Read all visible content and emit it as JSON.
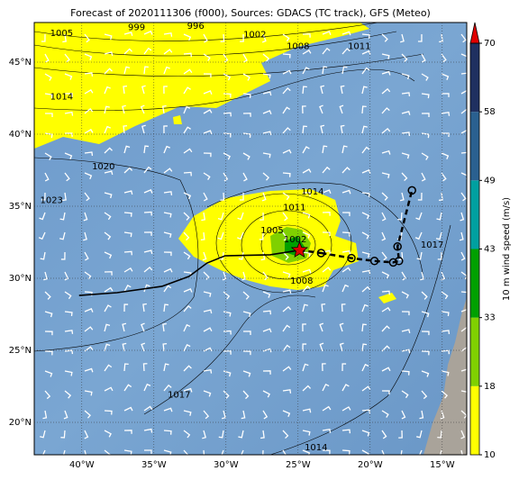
{
  "chart_data": {
    "type": "map",
    "title": "Forecast of 2020111306 (f000), Sources: GDACS (TC track), GFS (Meteo)",
    "xlim": [
      -43.3,
      -13.3
    ],
    "ylim": [
      17.75,
      47.75
    ],
    "xticks": [
      {
        "value": -40,
        "label": "40°W"
      },
      {
        "value": -35,
        "label": "35°W"
      },
      {
        "value": -30,
        "label": "30°W"
      },
      {
        "value": -25,
        "label": "25°W"
      },
      {
        "value": -20,
        "label": "20°W"
      },
      {
        "value": -15,
        "label": "15°W"
      }
    ],
    "yticks": [
      {
        "value": 20,
        "label": "20°N"
      },
      {
        "value": 25,
        "label": "25°N"
      },
      {
        "value": 30,
        "label": "30°N"
      },
      {
        "value": 35,
        "label": "35°N"
      },
      {
        "value": 40,
        "label": "40°N"
      },
      {
        "value": 45,
        "label": "45°N"
      }
    ],
    "grid": true,
    "contour_labels": [
      {
        "value": 1005,
        "lon": -41.4,
        "lat": 47.0
      },
      {
        "value": 999,
        "lon": -36.2,
        "lat": 47.4
      },
      {
        "value": 996,
        "lon": -32.1,
        "lat": 47.5
      },
      {
        "value": 1002,
        "lon": -28.0,
        "lat": 46.9
      },
      {
        "value": 1008,
        "lon": -25.0,
        "lat": 46.1
      },
      {
        "value": 1011,
        "lon": -20.75,
        "lat": 46.1
      },
      {
        "value": 1014,
        "lon": -41.4,
        "lat": 42.6
      },
      {
        "value": 1020,
        "lon": -38.5,
        "lat": 37.75
      },
      {
        "value": 1023,
        "lon": -42.1,
        "lat": 35.4
      },
      {
        "value": 1014,
        "lon": -24.0,
        "lat": 36.0
      },
      {
        "value": 1011,
        "lon": -25.25,
        "lat": 34.9
      },
      {
        "value": 1005,
        "lon": -26.8,
        "lat": 33.3
      },
      {
        "value": 1002,
        "lon": -25.2,
        "lat": 32.7
      },
      {
        "value": 1008,
        "lon": -24.75,
        "lat": 29.8
      },
      {
        "value": 1017,
        "lon": -15.7,
        "lat": 32.3
      },
      {
        "value": 1017,
        "lon": -33.25,
        "lat": 21.9
      },
      {
        "value": 1014,
        "lon": -23.75,
        "lat": 18.25
      }
    ],
    "current": {
      "lon": -24.9,
      "lat": 31.95,
      "color": "#e00000"
    },
    "past_track": {
      "lon": [
        -40.19,
        -37.56,
        -34.44,
        -32.56,
        -31.31,
        -30.06,
        -26.94,
        -24.9
      ],
      "lat": [
        28.81,
        29.0,
        29.44,
        30.13,
        31.06,
        31.56,
        31.63,
        31.95
      ]
    },
    "forecast_track": {
      "lon": [
        -23.4,
        -21.3,
        -19.7,
        -18.4,
        -18.0,
        -18.1,
        -17.1
      ],
      "lat": [
        31.75,
        31.4,
        31.2,
        31.1,
        31.2,
        32.2,
        36.1
      ]
    },
    "colorbar": {
      "label": "10 m wind speed (m/s)",
      "ticks": [
        10,
        18,
        33,
        43,
        49,
        58,
        70
      ],
      "colors": [
        "#ffff00",
        "#80d000",
        "#00a000",
        "#00a0a0",
        "#2a6090",
        "#1f3060"
      ],
      "extend_color": "#e00000"
    }
  }
}
